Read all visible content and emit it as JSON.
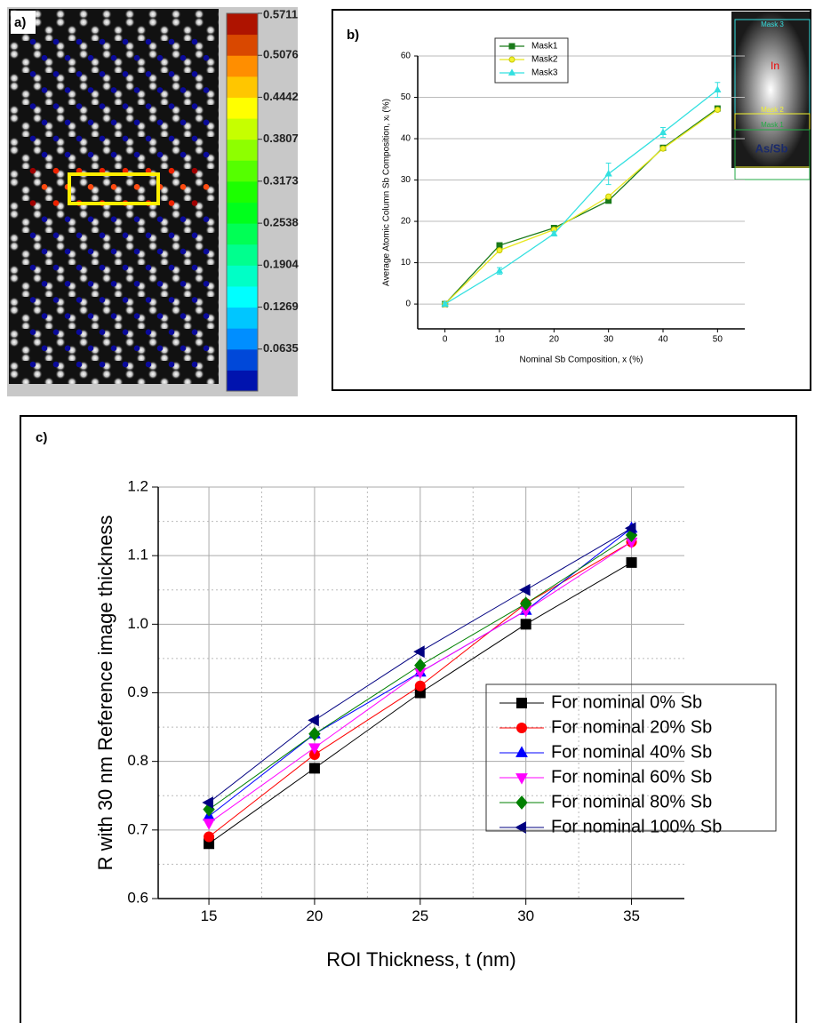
{
  "chart_data": [
    {
      "type": "image",
      "panel_label": "a)",
      "clim": [
        0,
        0.5711
      ],
      "colorbar_ticks": [
        0.5711,
        0.5076,
        0.4442,
        0.3807,
        0.3173,
        0.2538,
        0.1904,
        0.1269,
        0.0635
      ]
    },
    {
      "type": "line",
      "panel_label": "b)",
      "x_label": "Nominal Sb Composition, x (%)",
      "y_label": "Average Atomic Column Sb Composition, xᵢ (%)",
      "x": [
        0,
        10,
        20,
        30,
        40,
        50
      ],
      "xlim": [
        -5,
        55
      ],
      "xticks": [
        0,
        10,
        20,
        30,
        40,
        50
      ],
      "ylim": [
        -6,
        60
      ],
      "yticks": [
        0,
        10,
        20,
        30,
        40,
        50,
        60
      ],
      "grid": true,
      "legend": "upper-left",
      "series": [
        {
          "name": "Mask1",
          "color": "#1a7a1a",
          "marker": "square",
          "values": [
            0,
            14.2,
            18.4,
            25,
            37.8,
            47.3
          ]
        },
        {
          "name": "Mask2",
          "color": "#f2f230",
          "marker": "circle",
          "values": [
            0,
            13,
            18,
            26,
            37.6,
            47
          ]
        },
        {
          "name": "Mask3",
          "color": "#33e0e0",
          "marker": "triangle-up",
          "values": [
            0,
            8,
            17,
            31.5,
            41.5,
            51.8
          ],
          "errors": [
            0.4,
            0.8,
            0.5,
            2.6,
            1.2,
            1.8
          ]
        }
      ],
      "inset_labels": [
        "Mask 3",
        "In",
        "Mask 2",
        "Mask 1",
        "As/Sb"
      ]
    },
    {
      "type": "line",
      "panel_label": "c)",
      "x_label": "ROI Thickness, t (nm)",
      "y_label": "R with 30 nm Reference image thickness",
      "x": [
        15,
        20,
        25,
        30,
        35
      ],
      "xlim": [
        12.6,
        37.5
      ],
      "xticks": [
        15,
        20,
        25,
        30,
        35
      ],
      "ylim": [
        0.6,
        1.2
      ],
      "yticks": [
        0.6,
        0.7,
        0.8,
        0.9,
        {
          "value": 1,
          "label": "1.0"
        },
        1.1,
        1.2
      ],
      "grid": true,
      "legend": "lower-right",
      "series": [
        {
          "name": "For nominal 0% Sb",
          "color": "#000000",
          "marker": "square",
          "values": [
            0.68,
            0.79,
            0.9,
            1.0,
            1.09
          ]
        },
        {
          "name": "For nominal 20% Sb",
          "color": "#ff0000",
          "marker": "circle",
          "values": [
            0.69,
            0.81,
            0.91,
            1.03,
            1.12
          ]
        },
        {
          "name": "For nominal 40% Sb",
          "color": "#0000ff",
          "marker": "triangle-up",
          "values": [
            0.72,
            0.84,
            0.93,
            1.02,
            1.14
          ]
        },
        {
          "name": "For nominal 60% Sb",
          "color": "#ff00ff",
          "marker": "triangle-down",
          "values": [
            0.71,
            0.82,
            0.93,
            1.02,
            1.12
          ]
        },
        {
          "name": "For nominal 80% Sb",
          "color": "#008000",
          "marker": "diamond",
          "values": [
            0.73,
            0.84,
            0.94,
            1.03,
            1.13
          ]
        },
        {
          "name": "For nominal 100% Sb",
          "color": "#000080",
          "marker": "triangle-left",
          "values": [
            0.74,
            0.86,
            0.96,
            1.05,
            1.14
          ]
        }
      ]
    }
  ]
}
